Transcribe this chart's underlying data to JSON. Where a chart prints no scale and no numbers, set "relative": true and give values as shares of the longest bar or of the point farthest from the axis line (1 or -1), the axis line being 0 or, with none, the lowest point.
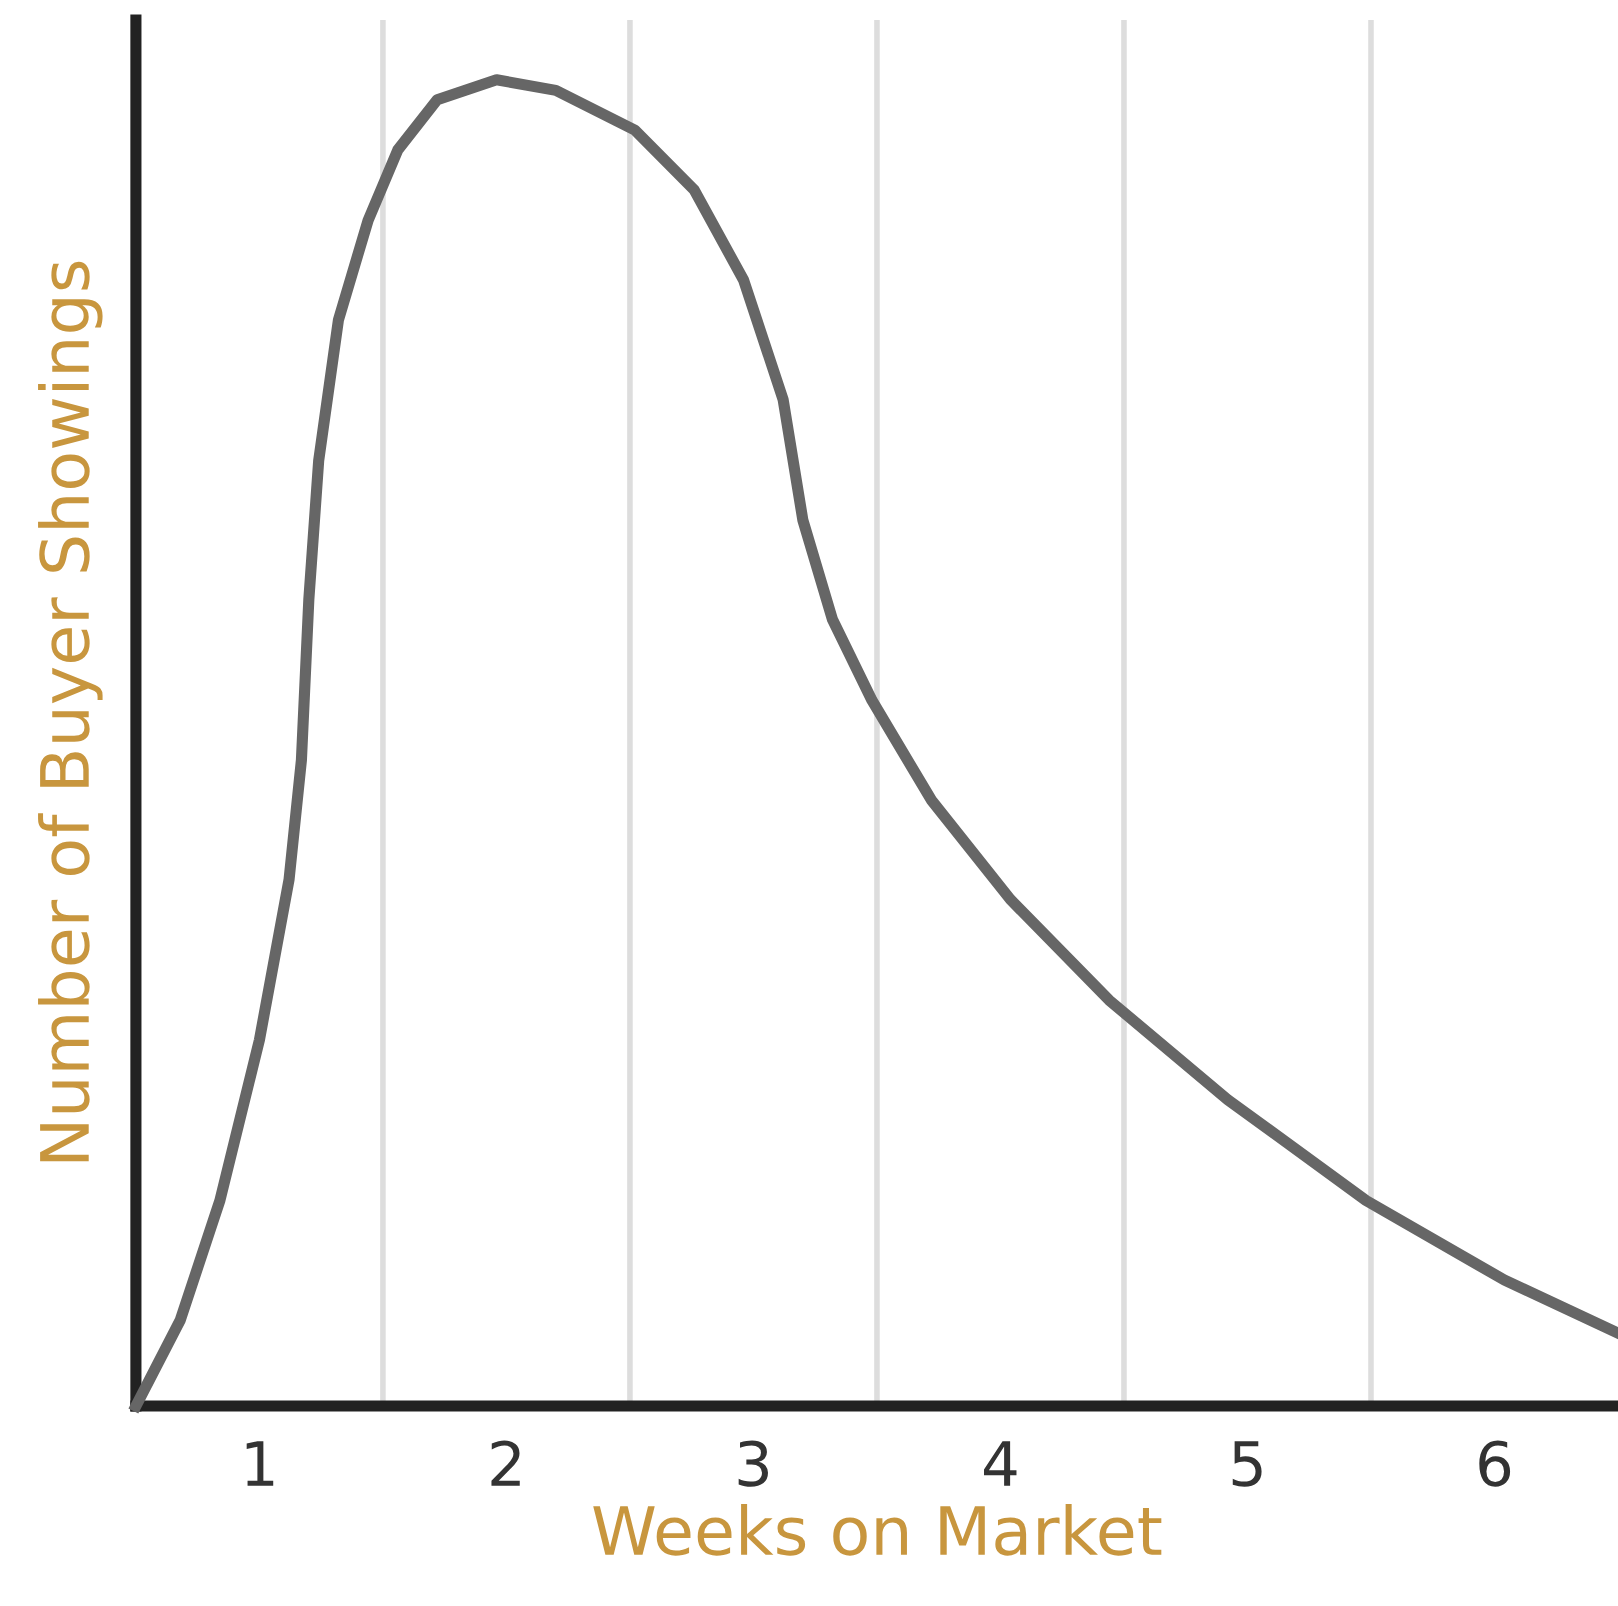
{
  "chart_data": {
    "type": "line",
    "relative": true,
    "xlabel": "Weeks on Market",
    "ylabel": "Number of Buyer Showings",
    "xlim": [
      0.5,
      6.5
    ],
    "xticks": [
      1,
      2,
      3,
      4,
      5,
      6
    ],
    "ref_lines": [
      {
        "axis": "x",
        "value": 1.5,
        "label": null,
        "color": "#dddddd"
      },
      {
        "axis": "x",
        "value": 2.5,
        "label": null,
        "color": "#dddddd"
      },
      {
        "axis": "x",
        "value": 3.5,
        "label": null,
        "color": "#dddddd"
      },
      {
        "axis": "x",
        "value": 4.5,
        "label": null,
        "color": "#dddddd"
      },
      {
        "axis": "x",
        "value": 5.5,
        "label": null,
        "color": "#dddddd"
      }
    ],
    "series": [
      {
        "color": "#666666",
        "x": [
          0.5,
          0.68,
          0.84,
          1.0,
          1.12,
          1.17,
          1.2,
          1.24,
          1.32,
          1.44,
          1.56,
          1.72,
          1.96,
          2.2,
          2.52,
          2.76,
          2.96,
          3.12,
          3.2,
          3.32,
          3.48,
          3.72,
          4.04,
          4.44,
          4.92,
          5.48,
          6.04,
          6.5
        ],
        "values": [
          0,
          0.065,
          0.155,
          0.276,
          0.397,
          0.487,
          0.608,
          0.713,
          0.819,
          0.894,
          0.947,
          0.985,
          1.0,
          0.992,
          0.962,
          0.917,
          0.849,
          0.759,
          0.668,
          0.593,
          0.532,
          0.457,
          0.382,
          0.306,
          0.231,
          0.155,
          0.095,
          0.055
        ]
      }
    ],
    "legend": false,
    "grid": false
  }
}
